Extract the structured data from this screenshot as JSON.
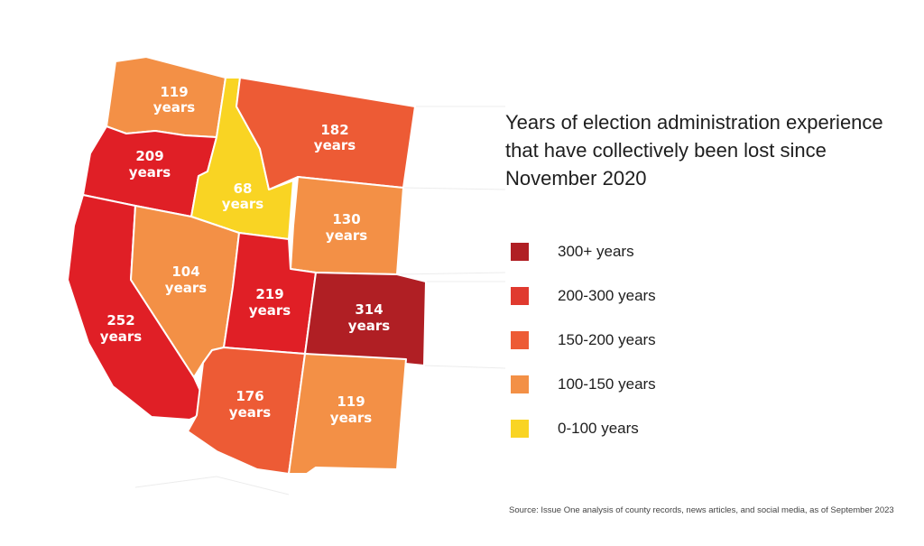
{
  "title": "Years of election administration experience that have collectively been lost since November 2020",
  "source": "Source: Issue One analysis of county records, news articles, and social media, as of September 2023",
  "legend": [
    {
      "label": "300+ years",
      "color": "#b01f24"
    },
    {
      "label": "200-300 years",
      "color": "#e03a2f"
    },
    {
      "label": "150-200 years",
      "color": "#ed5b35"
    },
    {
      "label": "100-150 years",
      "color": "#f39046"
    },
    {
      "label": "0-100 years",
      "color": "#f9d423"
    }
  ],
  "states": {
    "washington": {
      "value": "119",
      "unit": "years",
      "color": "#f39046"
    },
    "oregon": {
      "value": "209",
      "unit": "years",
      "color": "#e01f26"
    },
    "california": {
      "value": "252",
      "unit": "years",
      "color": "#e01f26"
    },
    "idaho": {
      "value": "68",
      "unit": "years",
      "color": "#f9d423"
    },
    "nevada": {
      "value": "104",
      "unit": "years",
      "color": "#f39046"
    },
    "montana": {
      "value": "182",
      "unit": "years",
      "color": "#ed5b35"
    },
    "wyoming": {
      "value": "130",
      "unit": "years",
      "color": "#f39046"
    },
    "utah": {
      "value": "219",
      "unit": "years",
      "color": "#e01f26"
    },
    "colorado": {
      "value": "314",
      "unit": "years",
      "color": "#b01f24"
    },
    "arizona": {
      "value": "176",
      "unit": "years",
      "color": "#ed5b35"
    },
    "new_mexico": {
      "value": "119",
      "unit": "years",
      "color": "#f39046"
    }
  }
}
